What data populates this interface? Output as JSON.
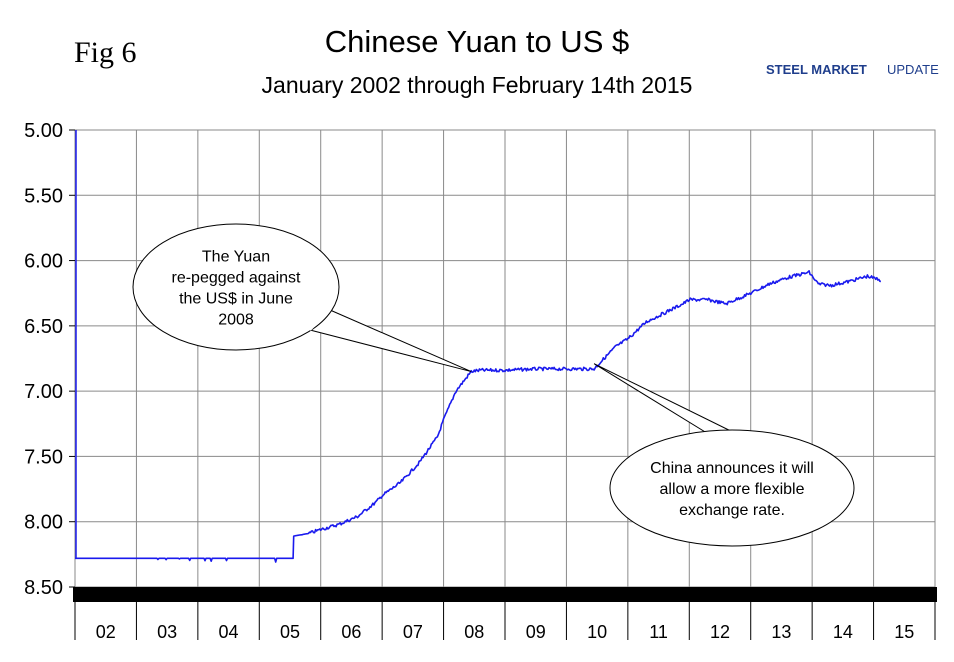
{
  "header": {
    "fig_label": "Fig 6",
    "title": "Chinese Yuan to US $",
    "subtitle": "January 2002 through February 14th 2015",
    "logo_text_1": "STEEL MARKET",
    "logo_text_2": "UPDATE"
  },
  "colors": {
    "series": "#1a1aee",
    "grid": "#8a8a8a",
    "band": "#000000",
    "logo_blue": "#1f3e8c",
    "logo_orange": "#f39a1e"
  },
  "chart_data": {
    "type": "line",
    "title": "Chinese Yuan to US $",
    "subtitle": "January 2002 through February 14th 2015",
    "xlabel": "",
    "ylabel": "",
    "y_inverted": true,
    "ylim": [
      5.0,
      8.5
    ],
    "yticks": [
      "5.00",
      "5.50",
      "6.00",
      "6.50",
      "7.00",
      "7.50",
      "8.00",
      "8.50"
    ],
    "xlim": [
      2002.0,
      2016.0
    ],
    "x_categories": [
      "02",
      "03",
      "04",
      "05",
      "06",
      "07",
      "08",
      "09",
      "10",
      "11",
      "12",
      "13",
      "14",
      "15"
    ],
    "grid": true,
    "series": [
      {
        "x": [
          2002.0,
          2003.0,
          2004.0,
          2005.0,
          2005.55,
          2005.56,
          2005.8,
          2006.0,
          2006.3,
          2006.6,
          2006.9,
          2007.0,
          2007.3,
          2007.6,
          2007.9,
          2008.0,
          2008.2,
          2008.45,
          2008.6,
          2009.0,
          2009.5,
          2010.0,
          2010.45,
          2010.55,
          2010.8,
          2011.0,
          2011.3,
          2011.6,
          2011.9,
          2012.0,
          2012.3,
          2012.6,
          2012.9,
          2013.0,
          2013.3,
          2013.6,
          2013.95,
          2014.1,
          2014.3,
          2014.6,
          2014.9,
          2015.12
        ],
        "y": [
          8.28,
          8.28,
          8.28,
          8.28,
          8.28,
          8.11,
          8.09,
          8.06,
          8.02,
          7.96,
          7.85,
          7.8,
          7.7,
          7.55,
          7.35,
          7.22,
          7.0,
          6.85,
          6.84,
          6.84,
          6.83,
          6.83,
          6.83,
          6.78,
          6.66,
          6.6,
          6.47,
          6.4,
          6.33,
          6.3,
          6.3,
          6.33,
          6.27,
          6.25,
          6.18,
          6.13,
          6.09,
          6.18,
          6.19,
          6.16,
          6.12,
          6.15
        ]
      }
    ],
    "annotations": [
      {
        "lines": [
          "The Yuan",
          "re-pegged against",
          "the US$ in June",
          "2008"
        ],
        "x": 2008.45,
        "y": 6.85
      },
      {
        "lines": [
          "China announces it will",
          "allow a more flexible",
          "exchange rate."
        ],
        "x": 2010.45,
        "y": 6.79
      }
    ]
  }
}
